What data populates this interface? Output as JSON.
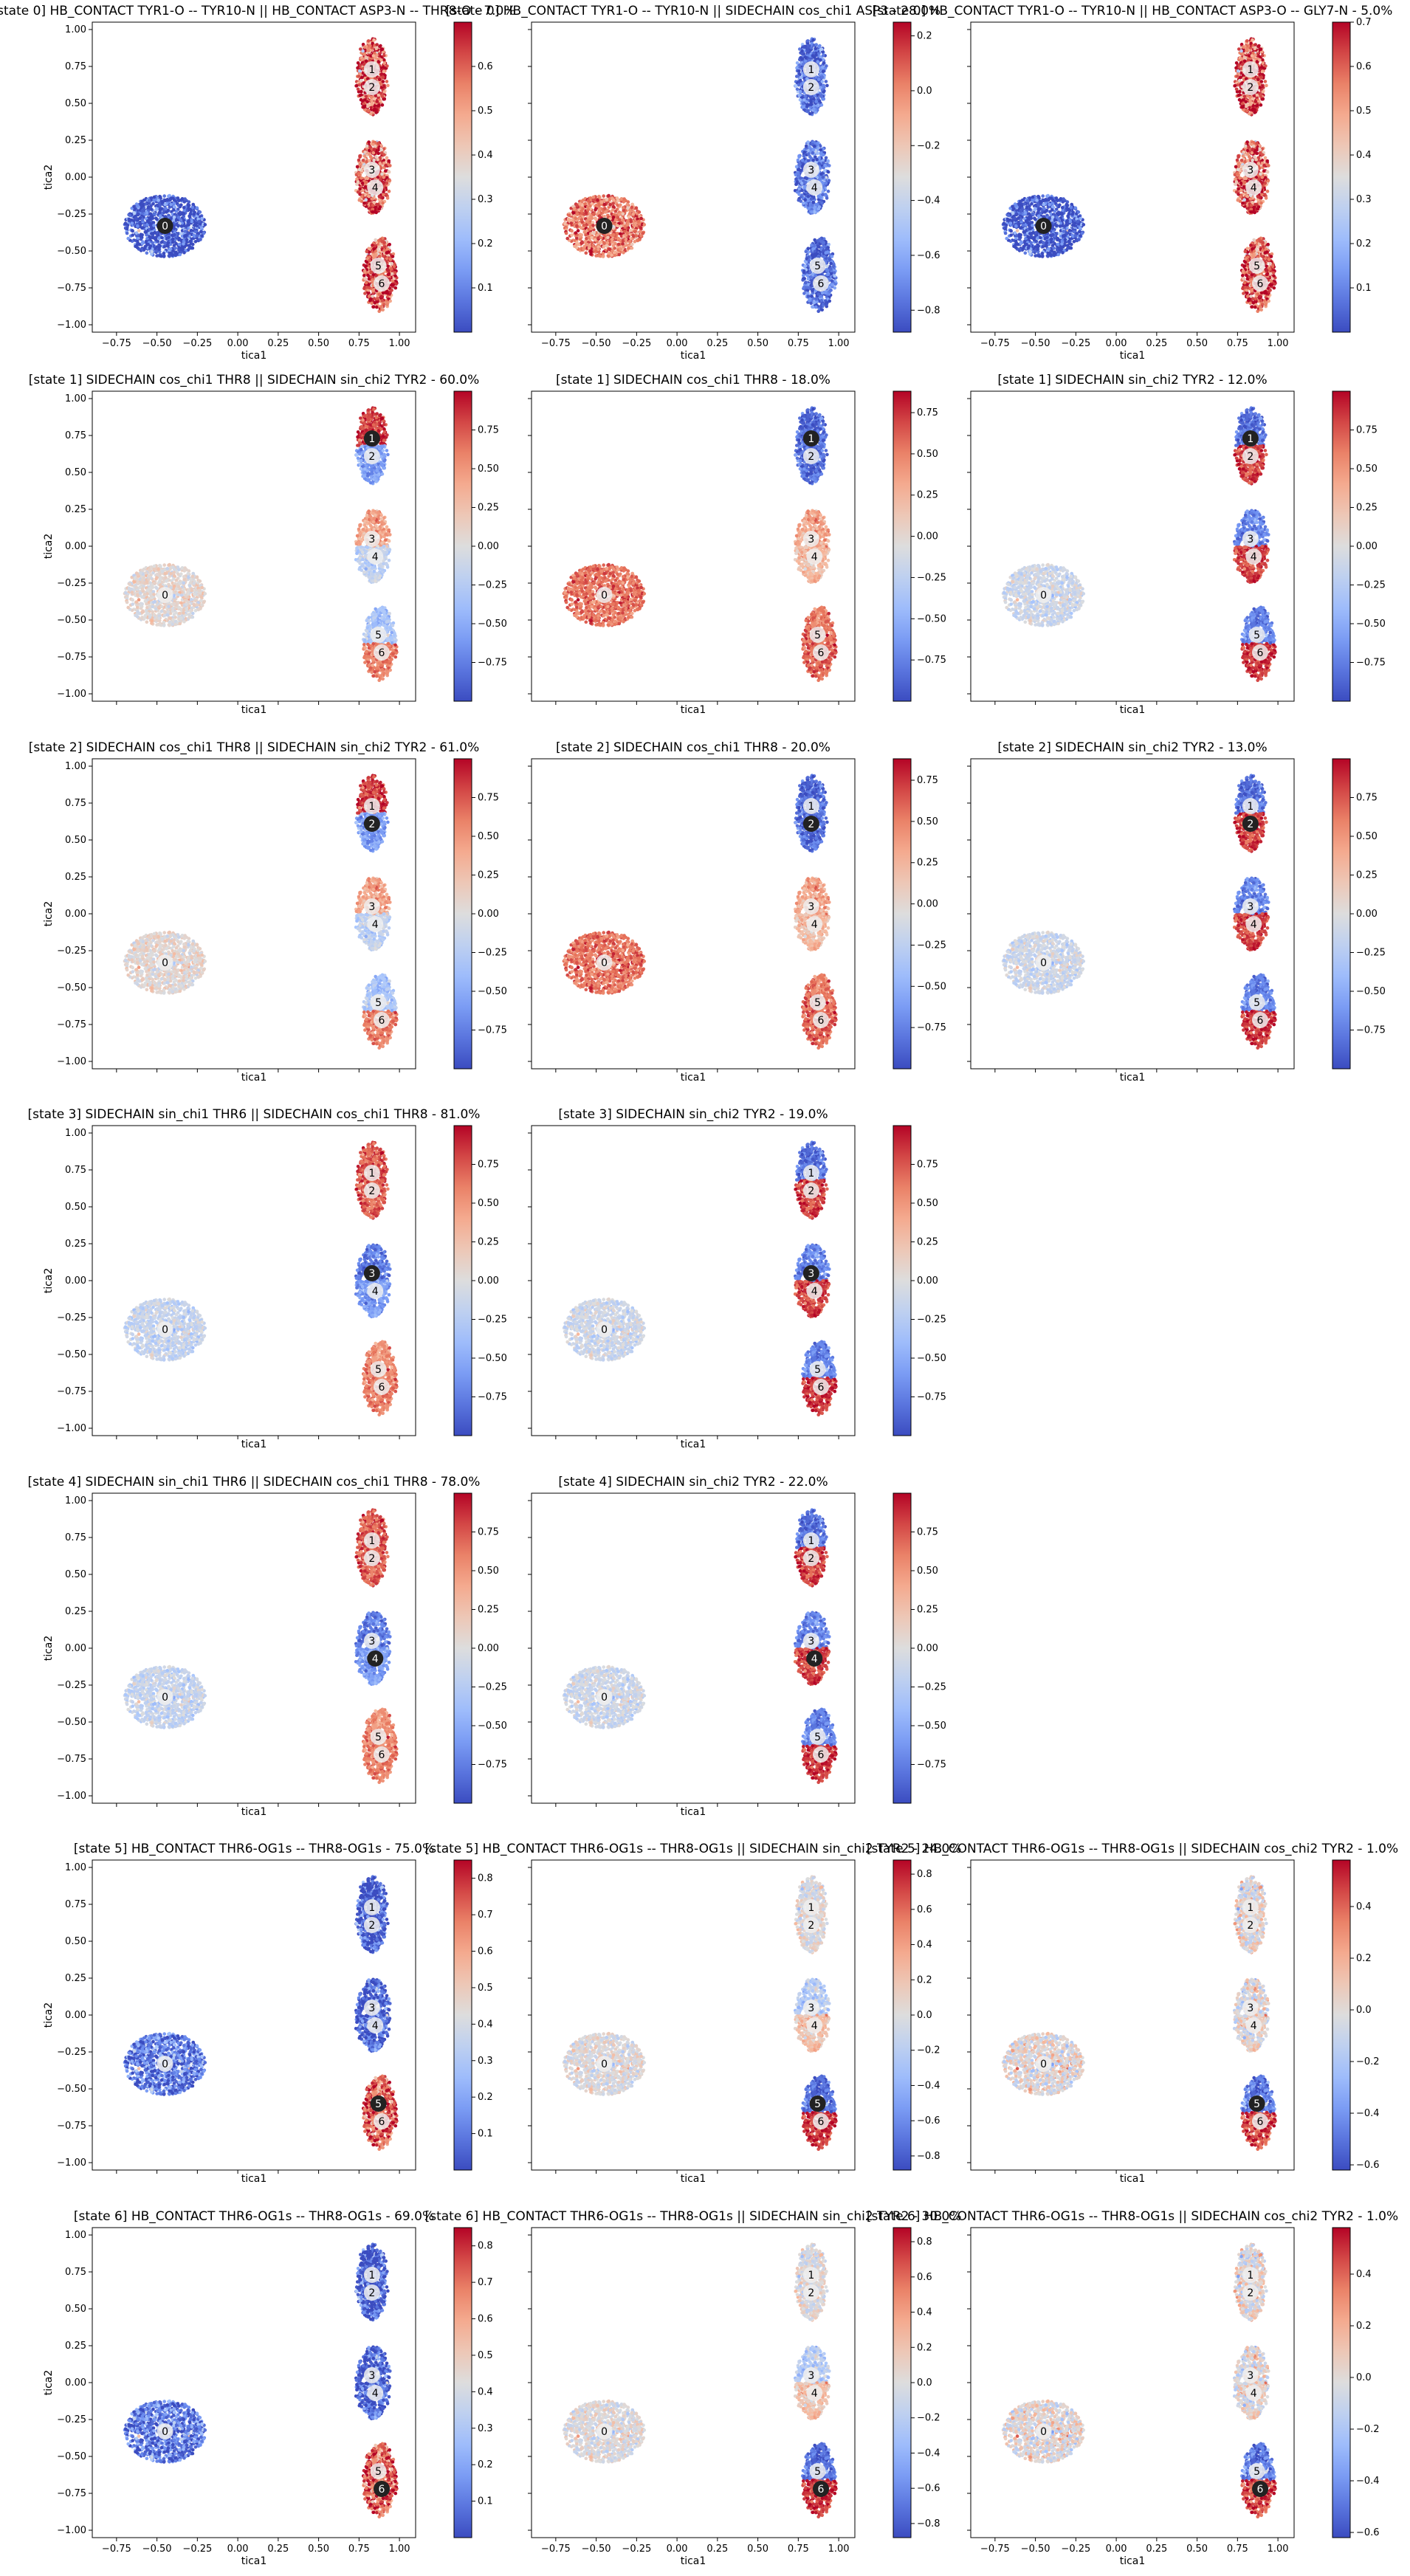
{
  "chart_data": {
    "type": "scatter",
    "xlabel": "tica1",
    "ylabel": "tica2",
    "xlim": [
      -0.9,
      1.1
    ],
    "ylim": [
      -1.05,
      1.05
    ],
    "x_ticks": [
      "−0.75",
      "−0.50",
      "−0.25",
      "0.00",
      "0.25",
      "0.50",
      "0.75",
      "1.00"
    ],
    "y_ticks": [
      "1.00",
      "0.75",
      "0.50",
      "0.25",
      "0.00",
      "−0.25",
      "−0.50",
      "−0.75",
      "−1.00"
    ],
    "colormap": "coolwarm",
    "cmap_colors": [
      "#3b4cc0",
      "#6f91f2",
      "#aac7fd",
      "#dddddd",
      "#f7b89c",
      "#e7745b",
      "#b40426"
    ],
    "states": [
      {
        "label": "0",
        "x": -0.45,
        "y": -0.33
      },
      {
        "label": "1",
        "x": 0.83,
        "y": 0.73
      },
      {
        "label": "2",
        "x": 0.83,
        "y": 0.61
      },
      {
        "label": "3",
        "x": 0.83,
        "y": 0.05
      },
      {
        "label": "4",
        "x": 0.85,
        "y": -0.07
      },
      {
        "label": "5",
        "x": 0.87,
        "y": -0.6
      },
      {
        "label": "6",
        "x": 0.89,
        "y": -0.72
      }
    ],
    "panels": [
      {
        "row": 0,
        "col": 0,
        "title": "[state 0] HB_CONTACT TYR1-O -- TYR10-N || HB_CONTACT ASP3-N -- THR8-O - 7.0%",
        "highlight": 0,
        "region_values": [
          0.0,
          0.62,
          0.62,
          0.58,
          0.6,
          0.62,
          0.62
        ],
        "cb_min": 0.0,
        "cb_max": 0.7,
        "cb_ticks": [
          "0.6",
          "0.5",
          "0.4",
          "0.3",
          "0.2",
          "0.1"
        ],
        "show_xticks": true
      },
      {
        "row": 0,
        "col": 1,
        "title": "[state 0] HB_CONTACT TYR1-O -- TYR10-N || SIDECHAIN cos_chi1 ASP3 - 28.0%",
        "highlight": 0,
        "region_values": [
          0.03,
          -0.78,
          -0.78,
          -0.74,
          -0.76,
          -0.78,
          -0.78
        ],
        "cb_min": -0.88,
        "cb_max": 0.25,
        "cb_ticks": [
          "0.2",
          "0.0",
          "−0.2",
          "−0.4",
          "−0.6",
          "−0.8"
        ],
        "show_xticks": true
      },
      {
        "row": 0,
        "col": 2,
        "title": "[state 0] HB_CONTACT TYR1-O -- TYR10-N || HB_CONTACT ASP3-O -- GLY7-N - 5.0%",
        "highlight": 0,
        "region_values": [
          0.0,
          0.62,
          0.62,
          0.58,
          0.6,
          0.62,
          0.62
        ],
        "cb_min": 0.0,
        "cb_max": 0.7,
        "cb_ticks": [
          "0.7",
          "0.6",
          "0.5",
          "0.4",
          "0.3",
          "0.2",
          "0.1"
        ],
        "show_xticks": true
      },
      {
        "row": 1,
        "col": 0,
        "title": "[state 1] SIDECHAIN cos_chi1 THR8 || SIDECHAIN sin_chi2 TYR2 - 60.0%",
        "highlight": 1,
        "region_values": [
          0.05,
          0.85,
          -0.6,
          0.45,
          -0.2,
          -0.3,
          0.6
        ],
        "cb_min": -1.0,
        "cb_max": 1.0,
        "cb_ticks": [
          "0.75",
          "0.50",
          "0.25",
          "0.00",
          "−0.25",
          "−0.50",
          "−0.75"
        ],
        "show_xticks": false
      },
      {
        "row": 1,
        "col": 1,
        "title": "[state 1] SIDECHAIN cos_chi1 THR8 - 18.0%",
        "highlight": 1,
        "region_values": [
          0.55,
          -0.85,
          -0.85,
          0.35,
          0.2,
          0.55,
          0.6
        ],
        "cb_min": -1.0,
        "cb_max": 0.88,
        "cb_ticks": [
          "0.75",
          "0.50",
          "0.25",
          "0.00",
          "−0.25",
          "−0.50",
          "−0.75"
        ],
        "show_xticks": false
      },
      {
        "row": 1,
        "col": 2,
        "title": "[state 1] SIDECHAIN sin_chi2 TYR2 - 12.0%",
        "highlight": 1,
        "region_values": [
          -0.1,
          -0.8,
          0.8,
          -0.7,
          0.8,
          -0.7,
          0.85
        ],
        "cb_min": -1.0,
        "cb_max": 1.0,
        "cb_ticks": [
          "0.75",
          "0.50",
          "0.25",
          "0.00",
          "−0.25",
          "−0.50",
          "−0.75"
        ],
        "show_xticks": false
      },
      {
        "row": 2,
        "col": 0,
        "title": "[state 2] SIDECHAIN cos_chi1 THR8 || SIDECHAIN sin_chi2 TYR2 - 61.0%",
        "highlight": 2,
        "region_values": [
          0.05,
          0.85,
          -0.6,
          0.45,
          -0.2,
          -0.3,
          0.6
        ],
        "cb_min": -1.0,
        "cb_max": 1.0,
        "cb_ticks": [
          "0.75",
          "0.50",
          "0.25",
          "0.00",
          "−0.25",
          "−0.50",
          "−0.75"
        ],
        "show_xticks": false
      },
      {
        "row": 2,
        "col": 1,
        "title": "[state 2] SIDECHAIN cos_chi1 THR8 - 20.0%",
        "highlight": 2,
        "region_values": [
          0.55,
          -0.85,
          -0.85,
          0.35,
          0.2,
          0.55,
          0.6
        ],
        "cb_min": -1.0,
        "cb_max": 0.88,
        "cb_ticks": [
          "0.75",
          "0.50",
          "0.25",
          "0.00",
          "−0.25",
          "−0.50",
          "−0.75"
        ],
        "show_xticks": false
      },
      {
        "row": 2,
        "col": 2,
        "title": "[state 2] SIDECHAIN sin_chi2 TYR2 - 13.0%",
        "highlight": 2,
        "region_values": [
          -0.1,
          -0.8,
          0.8,
          -0.7,
          0.8,
          -0.7,
          0.85
        ],
        "cb_min": -1.0,
        "cb_max": 1.0,
        "cb_ticks": [
          "0.75",
          "0.50",
          "0.25",
          "0.00",
          "−0.25",
          "−0.50",
          "−0.75"
        ],
        "show_xticks": false
      },
      {
        "row": 3,
        "col": 0,
        "title": "[state 3] SIDECHAIN sin_chi1 THR6 || SIDECHAIN cos_chi1 THR8 - 81.0%",
        "highlight": 3,
        "region_values": [
          -0.15,
          0.75,
          0.7,
          -0.75,
          -0.6,
          0.55,
          0.6
        ],
        "cb_min": -1.0,
        "cb_max": 1.0,
        "cb_ticks": [
          "0.75",
          "0.50",
          "0.25",
          "0.00",
          "−0.25",
          "−0.50",
          "−0.75"
        ],
        "show_xticks": false
      },
      {
        "row": 3,
        "col": 1,
        "title": "[state 3] SIDECHAIN sin_chi2 TYR2 - 19.0%",
        "highlight": 3,
        "region_values": [
          -0.1,
          -0.8,
          0.8,
          -0.7,
          0.8,
          -0.7,
          0.85
        ],
        "cb_min": -1.0,
        "cb_max": 1.0,
        "cb_ticks": [
          "0.75",
          "0.50",
          "0.25",
          "0.00",
          "−0.25",
          "−0.50",
          "−0.75"
        ],
        "show_xticks": false
      },
      {
        "row": 4,
        "col": 0,
        "title": "[state 4] SIDECHAIN sin_chi1 THR6 || SIDECHAIN cos_chi1 THR8 - 78.0%",
        "highlight": 4,
        "region_values": [
          -0.15,
          0.75,
          0.7,
          -0.75,
          -0.6,
          0.55,
          0.6
        ],
        "cb_min": -1.0,
        "cb_max": 1.0,
        "cb_ticks": [
          "0.75",
          "0.50",
          "0.25",
          "0.00",
          "−0.25",
          "−0.50",
          "−0.75"
        ],
        "show_xticks": false
      },
      {
        "row": 4,
        "col": 1,
        "title": "[state 4] SIDECHAIN sin_chi2 TYR2 - 22.0%",
        "highlight": 4,
        "region_values": [
          -0.1,
          -0.8,
          0.8,
          -0.7,
          0.8,
          -0.7,
          0.85
        ],
        "cb_min": -1.0,
        "cb_max": 1.0,
        "cb_ticks": [
          "0.75",
          "0.50",
          "0.25",
          "0.00",
          "−0.25",
          "−0.50",
          "−0.75"
        ],
        "show_xticks": false
      },
      {
        "row": 5,
        "col": 0,
        "title": "[state 5] HB_CONTACT THR6-OG1s -- THR8-OG1s - 75.0%",
        "highlight": 5,
        "region_values": [
          0.1,
          0.02,
          0.02,
          0.05,
          0.05,
          0.75,
          0.72
        ],
        "cb_min": 0.0,
        "cb_max": 0.85,
        "cb_ticks": [
          "0.8",
          "0.7",
          "0.6",
          "0.5",
          "0.4",
          "0.3",
          "0.2",
          "0.1"
        ],
        "show_xticks": false
      },
      {
        "row": 5,
        "col": 1,
        "title": "[state 5] HB_CONTACT THR6-OG1s -- THR8-OG1s || SIDECHAIN sin_chi2 TYR2 - 24.0%",
        "highlight": 5,
        "region_values": [
          0.0,
          0.0,
          0.0,
          -0.2,
          0.2,
          -0.7,
          0.75
        ],
        "cb_min": -0.88,
        "cb_max": 0.88,
        "cb_ticks": [
          "0.8",
          "0.6",
          "0.4",
          "0.2",
          "0.0",
          "−0.2",
          "−0.4",
          "−0.6",
          "−0.8"
        ],
        "show_xticks": false
      },
      {
        "row": 5,
        "col": 2,
        "title": "[state 5] HB_CONTACT THR6-OG1s -- THR8-OG1s || SIDECHAIN cos_chi2 TYR2 - 1.0%",
        "highlight": 5,
        "region_values": [
          0.0,
          0.0,
          0.0,
          0.0,
          0.0,
          -0.45,
          0.45
        ],
        "cb_min": -0.62,
        "cb_max": 0.58,
        "cb_ticks": [
          "0.4",
          "0.2",
          "0.0",
          "−0.2",
          "−0.4",
          "−0.6"
        ],
        "show_xticks": false
      },
      {
        "row": 6,
        "col": 0,
        "title": "[state 6] HB_CONTACT THR6-OG1s -- THR8-OG1s - 69.0%",
        "highlight": 6,
        "region_values": [
          0.1,
          0.02,
          0.02,
          0.05,
          0.05,
          0.75,
          0.72
        ],
        "cb_min": 0.0,
        "cb_max": 0.85,
        "cb_ticks": [
          "0.8",
          "0.7",
          "0.6",
          "0.5",
          "0.4",
          "0.3",
          "0.2",
          "0.1"
        ],
        "show_xticks": true
      },
      {
        "row": 6,
        "col": 1,
        "title": "[state 6] HB_CONTACT THR6-OG1s -- THR8-OG1s || SIDECHAIN sin_chi2 TYR2 - 30.0%",
        "highlight": 6,
        "region_values": [
          0.0,
          0.0,
          0.0,
          -0.2,
          0.2,
          -0.7,
          0.75
        ],
        "cb_min": -0.88,
        "cb_max": 0.88,
        "cb_ticks": [
          "0.8",
          "0.6",
          "0.4",
          "0.2",
          "0.0",
          "−0.2",
          "−0.4",
          "−0.6",
          "−0.8"
        ],
        "show_xticks": true
      },
      {
        "row": 6,
        "col": 2,
        "title": "[state 6] HB_CONTACT THR6-OG1s -- THR8-OG1s || SIDECHAIN cos_chi2 TYR2 - 1.0%",
        "highlight": 6,
        "region_values": [
          0.0,
          0.0,
          0.0,
          0.0,
          0.0,
          -0.45,
          0.45
        ],
        "cb_min": -0.62,
        "cb_max": 0.58,
        "cb_ticks": [
          "0.4",
          "0.2",
          "0.0",
          "−0.2",
          "−0.4",
          "−0.6"
        ],
        "show_xticks": true
      }
    ]
  }
}
